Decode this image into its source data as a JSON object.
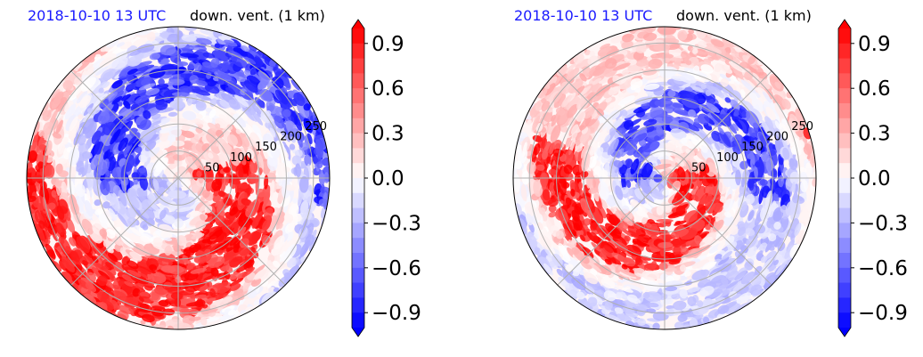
{
  "panels": [
    {
      "time_label": "2018-10-10 13 UTC",
      "var_label": "down. vent. (1 km)",
      "seed": 7
    },
    {
      "time_label": "2018-10-10 13 UTC",
      "var_label": "down. vent. (1 km)",
      "seed": 19
    }
  ],
  "chart_data": [
    {
      "type": "heatmap",
      "projection": "polar",
      "title": "2018-10-10 13 UTC   down. vent. (1 km)",
      "radial_ticks": [
        50,
        100,
        150,
        200,
        250
      ],
      "colorbar": {
        "ticks": [
          "0.9",
          "0.6",
          "0.3",
          "0.0",
          "−0.3",
          "−0.6",
          "−0.9"
        ],
        "range": [
          -1.0,
          1.0
        ],
        "colormap": "bwr",
        "extend": "both"
      },
      "grid": true
    },
    {
      "type": "heatmap",
      "projection": "polar",
      "title": "2018-10-10 13 UTC   down. vent. (1 km)",
      "radial_ticks": [
        50,
        100,
        150,
        200,
        250
      ],
      "colorbar": {
        "ticks": [
          "0.9",
          "0.6",
          "0.3",
          "0.0",
          "−0.3",
          "−0.6",
          "−0.9"
        ],
        "range": [
          -1.0,
          1.0
        ],
        "colormap": "bwr",
        "extend": "both"
      },
      "grid": true
    }
  ],
  "colors": {
    "positive": "#ff0000",
    "negative": "#0000ff",
    "neutral": "#ffffff",
    "time_label": "#1a1aff"
  }
}
